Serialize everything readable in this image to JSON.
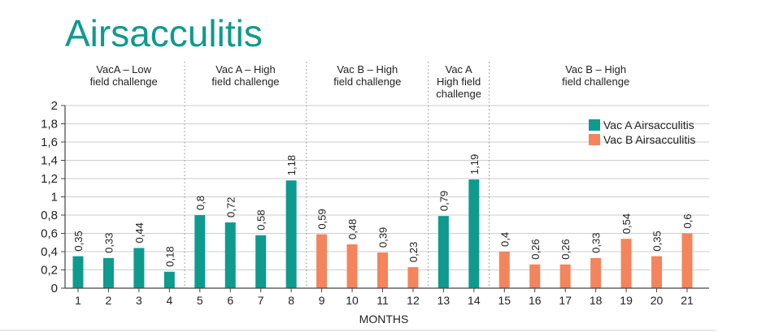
{
  "chart_data": {
    "type": "bar",
    "title": "Airsacculitis",
    "xlabel": "MONTHS",
    "ylabel": "",
    "ylim": [
      0,
      2
    ],
    "yticks": [
      "0",
      "0,2",
      "0,4",
      "0,6",
      "0,8",
      "1",
      "1,2",
      "1,4",
      "1,6",
      "1,8",
      "2"
    ],
    "grid": true,
    "legend_position": "right",
    "categories": [
      "1",
      "2",
      "3",
      "4",
      "5",
      "6",
      "7",
      "8",
      "9",
      "10",
      "11",
      "12",
      "13",
      "14",
      "15",
      "16",
      "17",
      "18",
      "19",
      "20",
      "21"
    ],
    "series": [
      {
        "name": "Vac A Airsacculitis",
        "color": "#0f9a8e"
      },
      {
        "name": "Vac B Airsacculitis",
        "color": "#f4845c"
      }
    ],
    "points": [
      {
        "x": "1",
        "value": 0.35,
        "label": "0,35",
        "series": 0
      },
      {
        "x": "2",
        "value": 0.33,
        "label": "0,33",
        "series": 0
      },
      {
        "x": "3",
        "value": 0.44,
        "label": "0,44",
        "series": 0
      },
      {
        "x": "4",
        "value": 0.18,
        "label": "0,18",
        "series": 0
      },
      {
        "x": "5",
        "value": 0.8,
        "label": "0,8",
        "series": 0
      },
      {
        "x": "6",
        "value": 0.72,
        "label": "0,72",
        "series": 0
      },
      {
        "x": "7",
        "value": 0.58,
        "label": "0,58",
        "series": 0
      },
      {
        "x": "8",
        "value": 1.18,
        "label": "1,18",
        "series": 0
      },
      {
        "x": "9",
        "value": 0.59,
        "label": "0,59",
        "series": 1
      },
      {
        "x": "10",
        "value": 0.48,
        "label": "0,48",
        "series": 1
      },
      {
        "x": "11",
        "value": 0.39,
        "label": "0,39",
        "series": 1
      },
      {
        "x": "12",
        "value": 0.23,
        "label": "0,23",
        "series": 1
      },
      {
        "x": "13",
        "value": 0.79,
        "label": "0,79",
        "series": 0
      },
      {
        "x": "14",
        "value": 1.19,
        "label": "1,19",
        "series": 0
      },
      {
        "x": "15",
        "value": 0.4,
        "label": "0,4",
        "series": 1
      },
      {
        "x": "16",
        "value": 0.26,
        "label": "0,26",
        "series": 1
      },
      {
        "x": "17",
        "value": 0.26,
        "label": "0,26",
        "series": 1
      },
      {
        "x": "18",
        "value": 0.33,
        "label": "0,33",
        "series": 1
      },
      {
        "x": "19",
        "value": 0.54,
        "label": "0,54",
        "series": 1
      },
      {
        "x": "20",
        "value": 0.35,
        "label": "0,35",
        "series": 1
      },
      {
        "x": "21",
        "value": 0.6,
        "label": "0,6",
        "series": 1
      }
    ],
    "groups": [
      {
        "lines": [
          "VacA – Low",
          "field challenge"
        ],
        "months": [
          "1",
          "4"
        ]
      },
      {
        "lines": [
          "Vac A – High",
          "field challenge"
        ],
        "months": [
          "5",
          "8"
        ]
      },
      {
        "lines": [
          "Vac B – High",
          "field challenge"
        ],
        "months": [
          "9",
          "12"
        ]
      },
      {
        "lines": [
          "Vac A",
          "High field",
          "challenge"
        ],
        "months": [
          "13",
          "14"
        ]
      },
      {
        "lines": [
          "Vac B – High",
          "field challenge"
        ],
        "months": [
          "15",
          "21"
        ]
      }
    ]
  }
}
